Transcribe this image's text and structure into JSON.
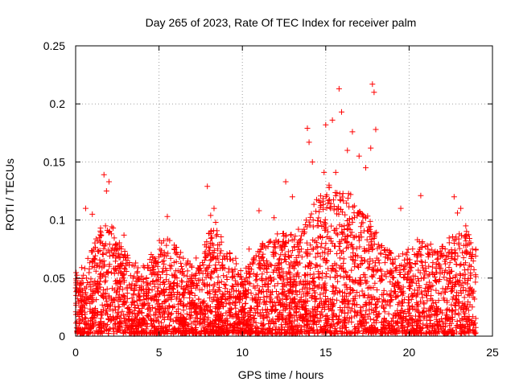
{
  "chart_data": {
    "type": "scatter",
    "title": "Day 265 of 2023, Rate Of TEC Index for receiver palm",
    "xlabel": "GPS time / hours",
    "ylabel": "ROTI / TECUs",
    "xlim": [
      0,
      25
    ],
    "ylim": [
      0,
      0.25
    ],
    "x_ticks": [
      0,
      5,
      10,
      15,
      20,
      25
    ],
    "y_ticks": [
      0,
      0.05,
      0.1,
      0.15,
      0.2,
      0.25
    ],
    "x_tick_labels": [
      "0",
      "5",
      "10",
      "15",
      "20",
      "25"
    ],
    "y_tick_labels": [
      "0",
      "0.05",
      "0.1",
      "0.15",
      "0.2",
      "0.25"
    ],
    "grid": true,
    "marker": "+",
    "marker_color": "#ff0000",
    "series": [
      {
        "name": "ROTI",
        "x": [
          0.6,
          1.0,
          1.7,
          1.85,
          2.0,
          2.9,
          5.5,
          7.9,
          8.1,
          8.3,
          8.4,
          11.0,
          11.9,
          12.6,
          13.0,
          13.6,
          13.9,
          14.0,
          14.2,
          14.9,
          15.0,
          15.2,
          15.4,
          15.6,
          15.8,
          15.95,
          16.3,
          16.6,
          17.0,
          17.4,
          17.7,
          17.8,
          17.9,
          18.0,
          19.5,
          20.5,
          20.7,
          22.7,
          22.9,
          23.1,
          23.4,
          23.8,
          0.3,
          3.6,
          4.8,
          6.3,
          9.6,
          10.4,
          12.1,
          21.4
        ],
        "y": [
          0.11,
          0.105,
          0.139,
          0.125,
          0.133,
          0.087,
          0.103,
          0.129,
          0.104,
          0.11,
          0.098,
          0.108,
          0.102,
          0.133,
          0.12,
          0.09,
          0.179,
          0.167,
          0.15,
          0.141,
          0.182,
          0.13,
          0.186,
          0.141,
          0.213,
          0.193,
          0.16,
          0.176,
          0.155,
          0.145,
          0.162,
          0.217,
          0.21,
          0.178,
          0.11,
          0.083,
          0.121,
          0.12,
          0.106,
          0.11,
          0.095,
          0.075,
          0.031,
          0.063,
          0.065,
          0.072,
          0.067,
          0.075,
          0.088,
          0.07
        ]
      }
    ]
  }
}
